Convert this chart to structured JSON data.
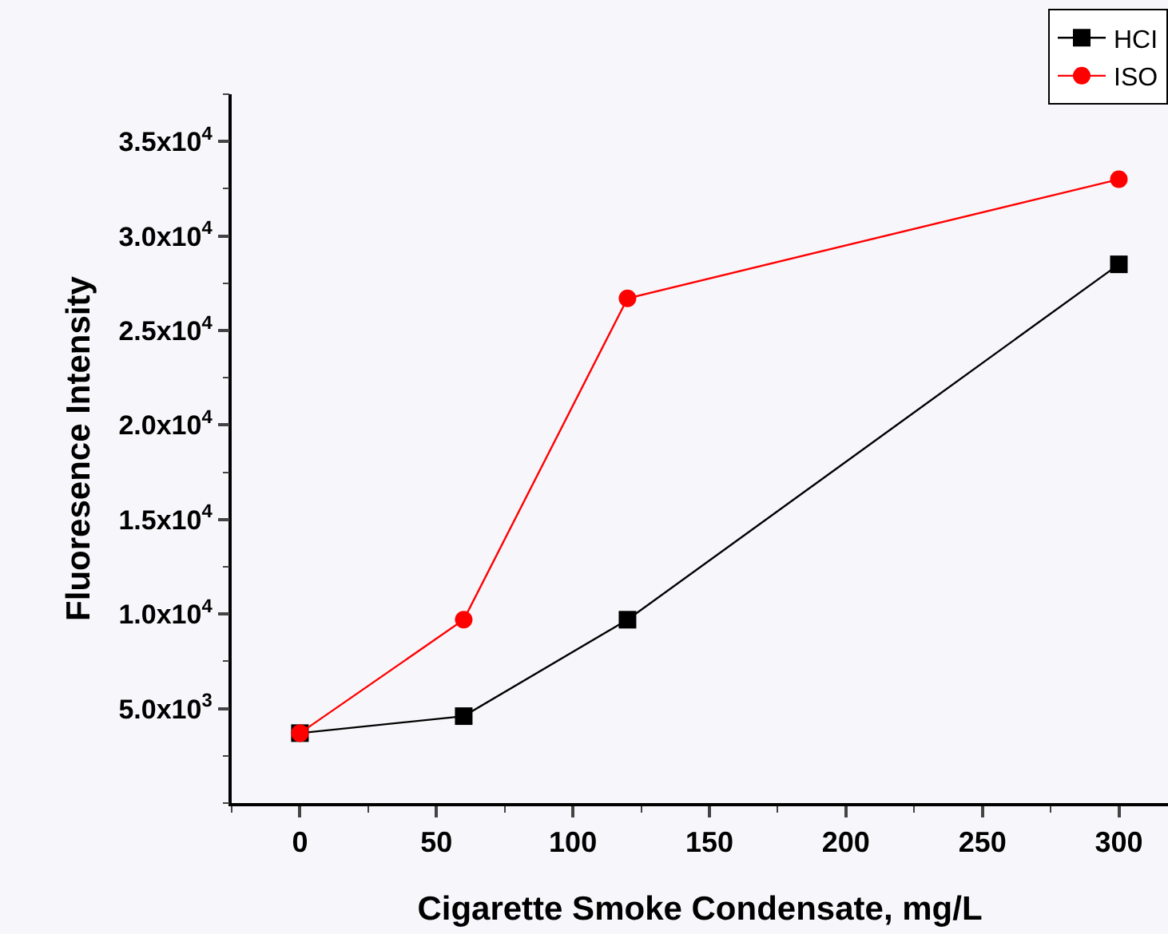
{
  "chart_data": {
    "type": "line",
    "xlabel": "Cigarette Smoke Condensate, mg/L",
    "ylabel": "Fluoresence Intensity",
    "x": [
      0,
      60,
      120,
      300
    ],
    "series": [
      {
        "name": "HCI",
        "color": "#000000",
        "marker": "square",
        "values": [
          3700,
          4600,
          9700,
          28500
        ]
      },
      {
        "name": "ISO",
        "color": "#ff0000",
        "marker": "circle",
        "values": [
          3700,
          9700,
          26700,
          33000
        ]
      }
    ],
    "xlim": [
      -25,
      318
    ],
    "xticks": [
      0,
      50,
      100,
      150,
      200,
      250,
      300
    ],
    "ylim": [
      0,
      37500
    ],
    "yticks": [
      {
        "value": 5000,
        "label": "5.0x10$^{3}$"
      },
      {
        "value": 10000,
        "label": "1.0x10$^{4}$"
      },
      {
        "value": 15000,
        "label": "1.5x10$^{4}$"
      },
      {
        "value": 20000,
        "label": "2.0x10$^{4}$"
      },
      {
        "value": 25000,
        "label": "2.5x10$^{4}$"
      },
      {
        "value": 30000,
        "label": "3.0x10$^{4}$"
      },
      {
        "value": 35000,
        "label": "3.5x10$^{4}$"
      }
    ],
    "grid": false,
    "legend": "top right",
    "line_style": "solid"
  }
}
